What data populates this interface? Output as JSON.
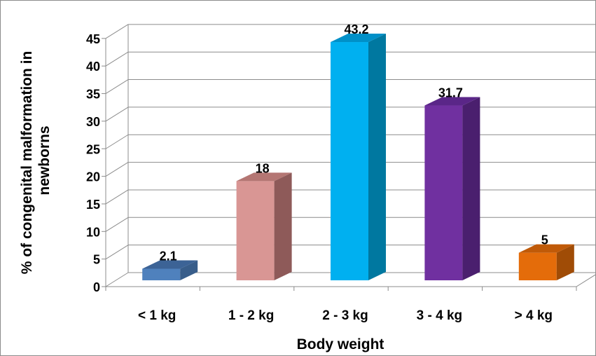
{
  "chart_data": {
    "type": "bar",
    "title": "",
    "xlabel": "Body weight",
    "ylabel": "% of congenital malformation in newborns",
    "ylabel_lines": [
      "% of congenital malformation in",
      "newborns"
    ],
    "ylim": [
      0,
      45
    ],
    "yticks": [
      0,
      5,
      10,
      15,
      20,
      25,
      30,
      35,
      40,
      45
    ],
    "ytick_labels": [
      "0",
      "5",
      "10",
      "15",
      "20",
      "25",
      "30",
      "35",
      "40",
      "45"
    ],
    "grid": true,
    "legend": "none",
    "categories": [
      "< 1 kg",
      "1 - 2 kg",
      "2 - 3 kg",
      "3 - 4 kg",
      "> 4 kg"
    ],
    "values": [
      2.1,
      18,
      43.2,
      31.7,
      5
    ],
    "value_labels": [
      "2.1",
      "18",
      "43.2",
      "31.7",
      "5"
    ],
    "colors": [
      {
        "front": "#4f81bd",
        "side": "#385d8a",
        "top": "#3c6396"
      },
      {
        "front": "#d99694",
        "side": "#8e5a59",
        "top": "#b47673"
      },
      {
        "front": "#00b0f0",
        "side": "#0078a0",
        "top": "#0090c8"
      },
      {
        "front": "#7030a0",
        "side": "#4a1f6e",
        "top": "#5a2688"
      },
      {
        "front": "#e46c0a",
        "side": "#a04c06",
        "top": "#c05a08"
      }
    ]
  }
}
